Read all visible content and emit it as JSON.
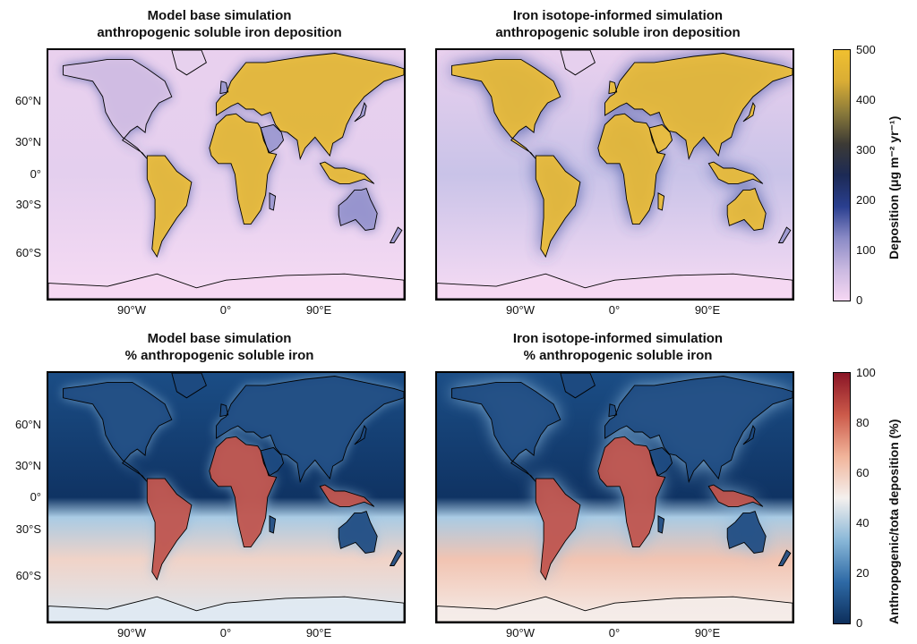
{
  "panels": [
    {
      "id": "a",
      "title_line1": "Model base simulation",
      "title_line2": "anthropogenic soluble iron deposition",
      "scheme": "dep",
      "variant": "base"
    },
    {
      "id": "b",
      "title_line1": "Iron isotope-informed simulation",
      "title_line2": "anthropogenic soluble iron deposition",
      "scheme": "dep",
      "variant": "iso"
    },
    {
      "id": "c",
      "title_line1": "Model base simulation",
      "title_line2": "% anthropogenic soluble iron",
      "scheme": "pct",
      "variant": "base"
    },
    {
      "id": "d",
      "title_line1": "Iron isotope-informed simulation",
      "title_line2": "% anthropogenic soluble iron",
      "scheme": "pct",
      "variant": "iso"
    }
  ],
  "lat_labels": [
    "60°N",
    "30°N",
    "0°",
    "30°S",
    "60°S"
  ],
  "lon_labels": [
    "90°W",
    "0°",
    "90°E"
  ],
  "colorbars": {
    "deposition": {
      "label": "Deposition (μg m⁻² yr⁻¹)",
      "ticks": [
        "500",
        "400",
        "300",
        "200",
        "100",
        "0"
      ],
      "range": [
        0,
        500
      ],
      "colors": [
        "#f6d7f3",
        "#c9b8e0",
        "#8a8ac6",
        "#2a3f8f",
        "#1c2a55",
        "#3c3a35",
        "#8a7a3a",
        "#d9ad35",
        "#f0c030"
      ]
    },
    "percent": {
      "label": "Anthropogenic/tota deposition (%)",
      "ticks": [
        "100",
        "80",
        "60",
        "40",
        "20",
        "0"
      ],
      "range": [
        0,
        100
      ],
      "colors": [
        "#0d2f5c",
        "#2e6aa6",
        "#8ab8d8",
        "#f4f0ee",
        "#f1b49a",
        "#cc5a4a",
        "#8a1526"
      ]
    }
  }
}
